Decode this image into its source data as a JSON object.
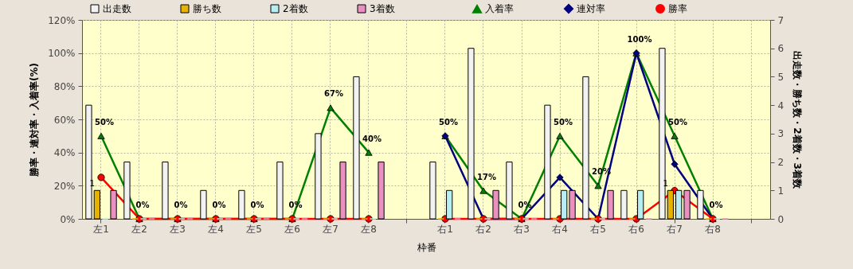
{
  "chart_data": {
    "type": "bar",
    "xlabel": "枠番",
    "ylabel": "勝率・連対率・入着率(%)",
    "y2label": "出走数・勝ち数・2着数・3着数",
    "categories": [
      "左1",
      "左2",
      "左3",
      "左4",
      "左5",
      "左6",
      "左7",
      "左8",
      null,
      "右1",
      "右2",
      "右3",
      "右4",
      "右5",
      "右6",
      "右7",
      "右8",
      null
    ],
    "series": [
      {
        "name": "出走数",
        "axis": "y2",
        "color": "#f2f2f2",
        "values": [
          4,
          2,
          2,
          1,
          1,
          2,
          3,
          5,
          null,
          2,
          6,
          2,
          4,
          5,
          1,
          6,
          1,
          null
        ]
      },
      {
        "name": "勝ち数",
        "axis": "y2",
        "color": "#e6b400",
        "values": [
          1,
          0,
          0,
          0,
          0,
          0,
          0,
          0,
          null,
          0,
          0,
          0,
          0,
          0,
          0,
          1,
          0,
          null
        ],
        "value_labels": [
          "1",
          null,
          null,
          null,
          null,
          null,
          null,
          null,
          null,
          null,
          null,
          null,
          null,
          null,
          null,
          "1",
          null,
          null
        ]
      },
      {
        "name": "2着数",
        "axis": "y2",
        "color": "#b8eef2",
        "values": [
          0,
          0,
          0,
          0,
          0,
          0,
          0,
          0,
          null,
          1,
          0,
          0,
          1,
          0,
          1,
          1,
          0,
          null
        ]
      },
      {
        "name": "3着数",
        "axis": "y2",
        "color": "#e890c0",
        "values": [
          1,
          0,
          0,
          0,
          0,
          0,
          2,
          2,
          null,
          0,
          1,
          0,
          1,
          1,
          0,
          1,
          0,
          null
        ]
      },
      {
        "name": "入着率",
        "type": "line",
        "marker": "triangle",
        "color": "#008000",
        "values": [
          50,
          0,
          0,
          0,
          0,
          0,
          67,
          40,
          null,
          50,
          17,
          0,
          50,
          20,
          100,
          50,
          0,
          null
        ],
        "value_labels": [
          "50%",
          "0%",
          "0%",
          "0%",
          "0%",
          "0%",
          "67%",
          "40%",
          null,
          "50%",
          "17%",
          "0%",
          "50%",
          "20%",
          "100%",
          "50%",
          "0%",
          null
        ]
      },
      {
        "name": "連対率",
        "type": "line",
        "marker": "diamond",
        "color": "#000080",
        "values": [
          null,
          null,
          null,
          null,
          null,
          null,
          null,
          null,
          null,
          50,
          0,
          0,
          25,
          0,
          100,
          33,
          0,
          null
        ]
      },
      {
        "name": "勝率",
        "type": "line",
        "marker": "circle",
        "color": "#ff0000",
        "values": [
          25,
          0,
          0,
          0,
          0,
          0,
          0,
          0,
          null,
          0,
          0,
          0,
          0,
          0,
          0,
          17,
          0,
          null
        ]
      }
    ],
    "ylim": [
      0,
      120
    ],
    "yticks": [
      {
        "value": 0,
        "label": "0%"
      },
      {
        "value": 20,
        "label": "20%"
      },
      {
        "value": 40,
        "label": "40%"
      },
      {
        "value": 60,
        "label": "60%"
      },
      {
        "value": 80,
        "label": "80%"
      },
      {
        "value": 100,
        "label": "100%"
      },
      {
        "value": 120,
        "label": "120%"
      }
    ],
    "y2lim": [
      0,
      7
    ],
    "y2ticks": [
      0,
      1,
      2,
      3,
      4,
      5,
      6,
      7
    ],
    "grid": true,
    "legend": "top"
  }
}
